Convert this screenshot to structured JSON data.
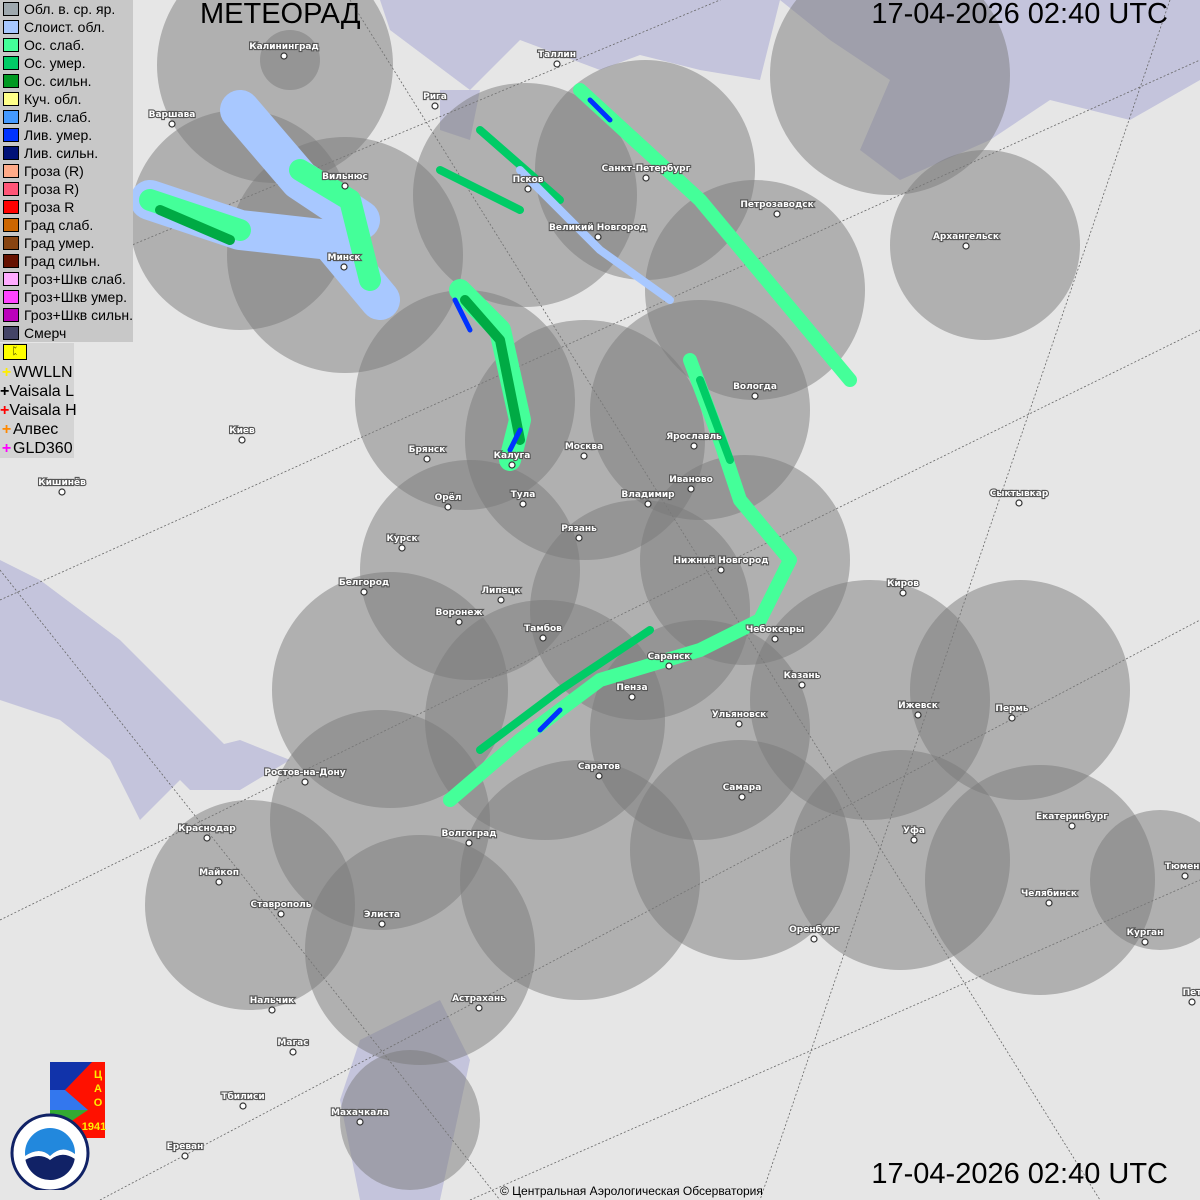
{
  "header": {
    "title": "МЕТЕОРАД",
    "timestamp_top": "17-04-2026  02:40 UTC",
    "timestamp_bottom": "17-04-2026  02:40 UTC"
  },
  "legend": [
    {
      "label": "Обл. в. ср. яр.",
      "color": "#9ea8ae"
    },
    {
      "label": "Слоист. обл.",
      "color": "#a8c8ff"
    },
    {
      "label": "Ос. слаб.",
      "color": "#44ff99"
    },
    {
      "label": "Ос. умер.",
      "color": "#00cc66"
    },
    {
      "label": "Ос. сильн.",
      "color": "#009922"
    },
    {
      "label": "Куч. обл.",
      "color": "#ffff88"
    },
    {
      "label": "Лив. слаб.",
      "color": "#4499ff"
    },
    {
      "label": "Лив. умер.",
      "color": "#0033ff"
    },
    {
      "label": "Лив. сильн.",
      "color": "#001177"
    },
    {
      "label": "Гроза (R)",
      "color": "#ffaa88"
    },
    {
      "label": "Гроза R)",
      "color": "#ff5577"
    },
    {
      "label": "Гроза R",
      "color": "#ff0000"
    },
    {
      "label": "Град слаб.",
      "color": "#cc6600"
    },
    {
      "label": "Град умер.",
      "color": "#884411"
    },
    {
      "label": "Град сильн.",
      "color": "#661100"
    },
    {
      "label": "Гроз+Шкв слаб.",
      "color": "#ffaaff"
    },
    {
      "label": "Гроз+Шкв умер.",
      "color": "#ff44ff"
    },
    {
      "label": "Гроз+Шкв сильн.",
      "color": "#bb00bb"
    },
    {
      "label": "Смерч",
      "color": "#444466"
    }
  ],
  "lightning_toggle": "ᛈ",
  "lightning": [
    {
      "label": "WWLLN",
      "color": "#ffee00"
    },
    {
      "label": "Vaisala L",
      "color": "#000000"
    },
    {
      "label": "Vaisala H",
      "color": "#ff0000"
    },
    {
      "label": "Алвес",
      "color": "#ff8800"
    },
    {
      "label": "GLD360",
      "color": "#ff00ff"
    }
  ],
  "cities": [
    "Калининград",
    "Рига",
    "Таллин",
    "Варшава",
    "Вильнюс",
    "Псков",
    "Санкт-Петербург",
    "Петрозаводск",
    "Великий Новгород",
    "Архангельск",
    "Минск",
    "Вологда",
    "Ярославль",
    "Киев",
    "Брянск",
    "Калуга",
    "Москва",
    "Кишинёв",
    "Орёл",
    "Тула",
    "Владимир",
    "Иваново",
    "Сыктывкар",
    "Рязань",
    "Курск",
    "Нижний Новгород",
    "Белгород",
    "Липецк",
    "Киров",
    "Воронеж",
    "Тамбов",
    "Чебоксары",
    "Саранск",
    "Казань",
    "Пенза",
    "Ижевск",
    "Пермь",
    "Ульяновск",
    "Ростов-на-Дону",
    "Саратов",
    "Самара",
    "Краснодар",
    "Уфа",
    "Екатеринбург",
    "Волгоград",
    "Майкоп",
    "Тюмень",
    "Челябинск",
    "Ставрополь",
    "Элиста",
    "Оренбург",
    "Курган",
    "Астрахань",
    "Нальчик",
    "Пет",
    "Магас",
    "Тбилиси",
    "Махачкала",
    "Ереван"
  ],
  "logos": {
    "cao": "ЦАО 1941",
    "roshydromet": "РОСГИДРОМЕТ ROSHYDROMET"
  },
  "copyright": "© Центральная Аэрологическая Обсерватория",
  "colors": {
    "coverage": "#808080",
    "sea": "#c4c4dc",
    "land": "#e6e6e6"
  }
}
